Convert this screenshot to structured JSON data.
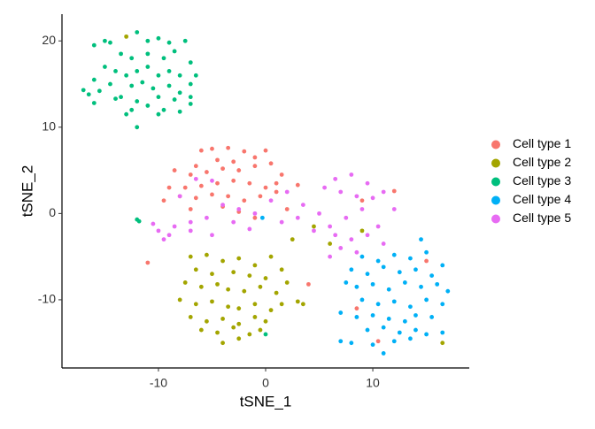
{
  "chart_data": {
    "type": "scatter",
    "x_label": "tSNE_1",
    "y_label": "tSNE_2",
    "xlim": [
      -19,
      19
    ],
    "ylim": [
      -17.9,
      23.1
    ],
    "xticks": [
      -10,
      0,
      10
    ],
    "yticks": [
      -10,
      0,
      10,
      20
    ],
    "grid": false,
    "legend": "right",
    "series": [
      {
        "name": "Cell type 1",
        "color": "#F8766D",
        "x": [
          -6,
          -5,
          -3.5,
          -2,
          0,
          -1,
          -3,
          -4.5,
          -6.5,
          -8.5,
          -7,
          -5.5,
          -4,
          -2.5,
          -1,
          0.5,
          1.5,
          -9,
          -7.5,
          -6,
          -4.5,
          -3,
          -1.5,
          0,
          1,
          -8,
          -6.5,
          -5,
          -3.5,
          -2,
          -0.5,
          1,
          -7,
          -4,
          -2.5,
          -1,
          2,
          3,
          -9.5,
          -11,
          10.5,
          8.5,
          4,
          15,
          12,
          9
        ],
        "y": [
          7.3,
          7.5,
          7.6,
          7.2,
          7.3,
          6.5,
          6,
          6.2,
          5.5,
          5,
          4.5,
          4.8,
          5.2,
          5,
          5.5,
          5.8,
          4.5,
          3,
          3,
          3.2,
          3.5,
          3.8,
          3.5,
          3,
          3.5,
          2,
          1.8,
          2.2,
          2,
          1.5,
          2,
          2.5,
          0.5,
          0.8,
          0.2,
          -0.5,
          0.5,
          3.3,
          1.5,
          -5.7,
          -14.8,
          -11,
          -8.2,
          -5.5,
          2.6,
          1.5
        ]
      },
      {
        "name": "Cell type 2",
        "color": "#A3A500",
        "x": [
          -7,
          -5.5,
          -4,
          -2.5,
          -1,
          0.5,
          -6.5,
          -5,
          -3,
          -1.5,
          0,
          1.5,
          -7.5,
          -6,
          -4.5,
          -3.5,
          -2,
          -0.5,
          1,
          2,
          -8,
          -6.5,
          -5,
          -3.5,
          -2.5,
          -1,
          0.5,
          1.5,
          3,
          -7,
          -5.5,
          -4,
          -2.5,
          -1,
          0,
          -6,
          -4.5,
          -3,
          -1.5,
          -0.5,
          -4,
          -2.5,
          -13,
          16.5,
          9,
          6,
          4.5,
          2.5,
          3.5
        ],
        "y": [
          -5,
          -4.8,
          -5.5,
          -5.2,
          -6,
          -5,
          -6.5,
          -7,
          -6.8,
          -7.2,
          -7.5,
          -6.5,
          -8,
          -8.5,
          -8.2,
          -8.8,
          -9,
          -8.5,
          -9.2,
          -8,
          -10,
          -10.5,
          -10.2,
          -10.8,
          -11,
          -10.5,
          -11.2,
          -10.5,
          -10.2,
          -12,
          -12.5,
          -12.2,
          -12.8,
          -12,
          -12.5,
          -13.5,
          -13.8,
          -13.2,
          -14,
          -13.5,
          -15,
          -14.5,
          20.5,
          -15,
          -2,
          -3.5,
          -1.5,
          -3,
          -10.5
        ]
      },
      {
        "name": "Cell type 3",
        "color": "#00BF7D",
        "x": [
          -15,
          -14.5,
          -12,
          -11,
          -10,
          -9,
          -7.5,
          -16,
          -13.5,
          -12.5,
          -11,
          -9.5,
          -8.5,
          -7,
          -15,
          -14,
          -13,
          -12,
          -11,
          -10,
          -9,
          -8,
          -6.5,
          -16,
          -14.5,
          -12.5,
          -11.5,
          -10.5,
          -9,
          -8,
          -7,
          -17,
          -16.5,
          -15.5,
          -13.5,
          -12,
          -10,
          -8.5,
          -7,
          -16,
          -14,
          -12.5,
          -11,
          -9.5,
          -8,
          -13,
          -10,
          -12,
          -12,
          -11.8,
          -7,
          0
        ],
        "y": [
          20,
          19.8,
          21,
          20,
          20.3,
          19.8,
          20,
          19.5,
          18.5,
          18,
          18.5,
          18,
          18.8,
          17.5,
          17,
          16.5,
          16,
          16.5,
          17,
          16,
          16.5,
          16,
          16,
          15.5,
          15,
          14.8,
          15.2,
          14.5,
          14.8,
          14,
          15,
          14.3,
          13.8,
          14.2,
          13.5,
          13,
          13.5,
          13.2,
          13.5,
          12.8,
          13.3,
          12,
          12.5,
          12,
          11.8,
          11.5,
          11.5,
          10,
          -0.7,
          -0.9,
          12.7,
          -14
        ]
      },
      {
        "name": "Cell type 4",
        "color": "#00B0F6",
        "x": [
          9,
          10.5,
          12,
          13.5,
          15,
          8,
          9.5,
          11,
          12.5,
          14,
          15.5,
          16.5,
          7.5,
          8.5,
          10,
          11.5,
          13,
          14.5,
          16,
          17,
          9,
          10.5,
          12,
          13.5,
          15,
          16.5,
          7,
          8.5,
          10,
          11.5,
          13,
          14,
          15.5,
          9.5,
          11,
          12.5,
          14,
          15,
          16.5,
          8,
          10,
          12,
          13.5,
          7,
          -0.3,
          11,
          14.5
        ],
        "y": [
          -5,
          -5.5,
          -4.8,
          -5.2,
          -4.5,
          -6.5,
          -7,
          -6.2,
          -6.8,
          -6.5,
          -7.2,
          -6,
          -8,
          -8.5,
          -8.2,
          -8.8,
          -8,
          -8.5,
          -8.2,
          -9,
          -10,
          -10.5,
          -10.2,
          -10.8,
          -10,
          -10.5,
          -11.5,
          -12,
          -11.8,
          -12.2,
          -12.5,
          -11.8,
          -12,
          -13.5,
          -13.2,
          -13.8,
          -13.5,
          -14,
          -13.8,
          -15,
          -15.2,
          -14.8,
          -14.5,
          -14.8,
          -0.5,
          -16.2,
          -3
        ]
      },
      {
        "name": "Cell type 5",
        "color": "#E76BF3",
        "x": [
          -10,
          -9.5,
          -8.5,
          -7,
          -5.5,
          -4,
          -2.5,
          -1,
          0.5,
          2,
          3.5,
          5,
          6.5,
          8,
          9.5,
          11,
          12,
          -9,
          -7,
          -5,
          -3,
          -1.5,
          1.5,
          3,
          4.5,
          6,
          7.5,
          9,
          10.5,
          5.5,
          7,
          8.5,
          10,
          6.5,
          8,
          9.5,
          11,
          7,
          8.5,
          6,
          -6.5,
          -8,
          -10.5,
          -5
        ],
        "y": [
          -2,
          -3,
          -1.5,
          -1,
          -0.5,
          1,
          0.5,
          0,
          1.5,
          2.5,
          1,
          0,
          4,
          4.5,
          3.5,
          2.5,
          0.5,
          -2.5,
          -2,
          -2.5,
          -1,
          -1.8,
          -1,
          -0.5,
          -2,
          -1.5,
          -0.5,
          0.5,
          -1.5,
          3,
          2.5,
          2,
          1.8,
          -2.5,
          -3,
          -2.5,
          -3.5,
          -4,
          -4.5,
          -5,
          4,
          2,
          -1.2,
          3.8
        ]
      }
    ]
  }
}
